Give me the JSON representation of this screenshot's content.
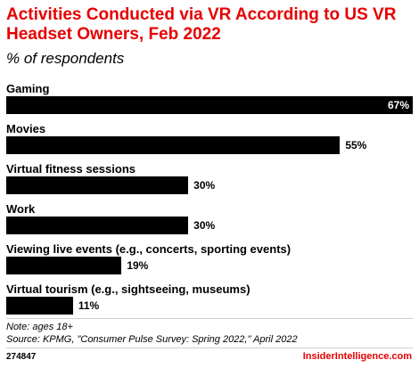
{
  "chart_data": {
    "type": "bar",
    "orientation": "horizontal",
    "title": "Activities Conducted via VR According to US VR Headset Owners, Feb 2022",
    "subtitle": "% of respondents",
    "categories": [
      "Gaming",
      "Movies",
      "Virtual fitness sessions",
      "Work",
      "Viewing live events (e.g., concerts, sporting events)",
      "Virtual tourism (e.g., sightseeing, museums)"
    ],
    "values": [
      67,
      55,
      30,
      30,
      19,
      11
    ],
    "value_labels": [
      "67%",
      "55%",
      "30%",
      "30%",
      "19%",
      "11%"
    ],
    "xlim": [
      0,
      67
    ],
    "bar_color": "#000000",
    "grid": false
  },
  "footer": {
    "note": "Note: ages 18+",
    "source": "Source: KPMG, \"Consumer Pulse Survey: Spring 2022,\" April 2022",
    "chart_id": "274847",
    "brand": "InsiderIntelligence.com"
  },
  "colors": {
    "accent": "#e60000",
    "bar": "#000000",
    "divider": "#cfcfcf"
  }
}
